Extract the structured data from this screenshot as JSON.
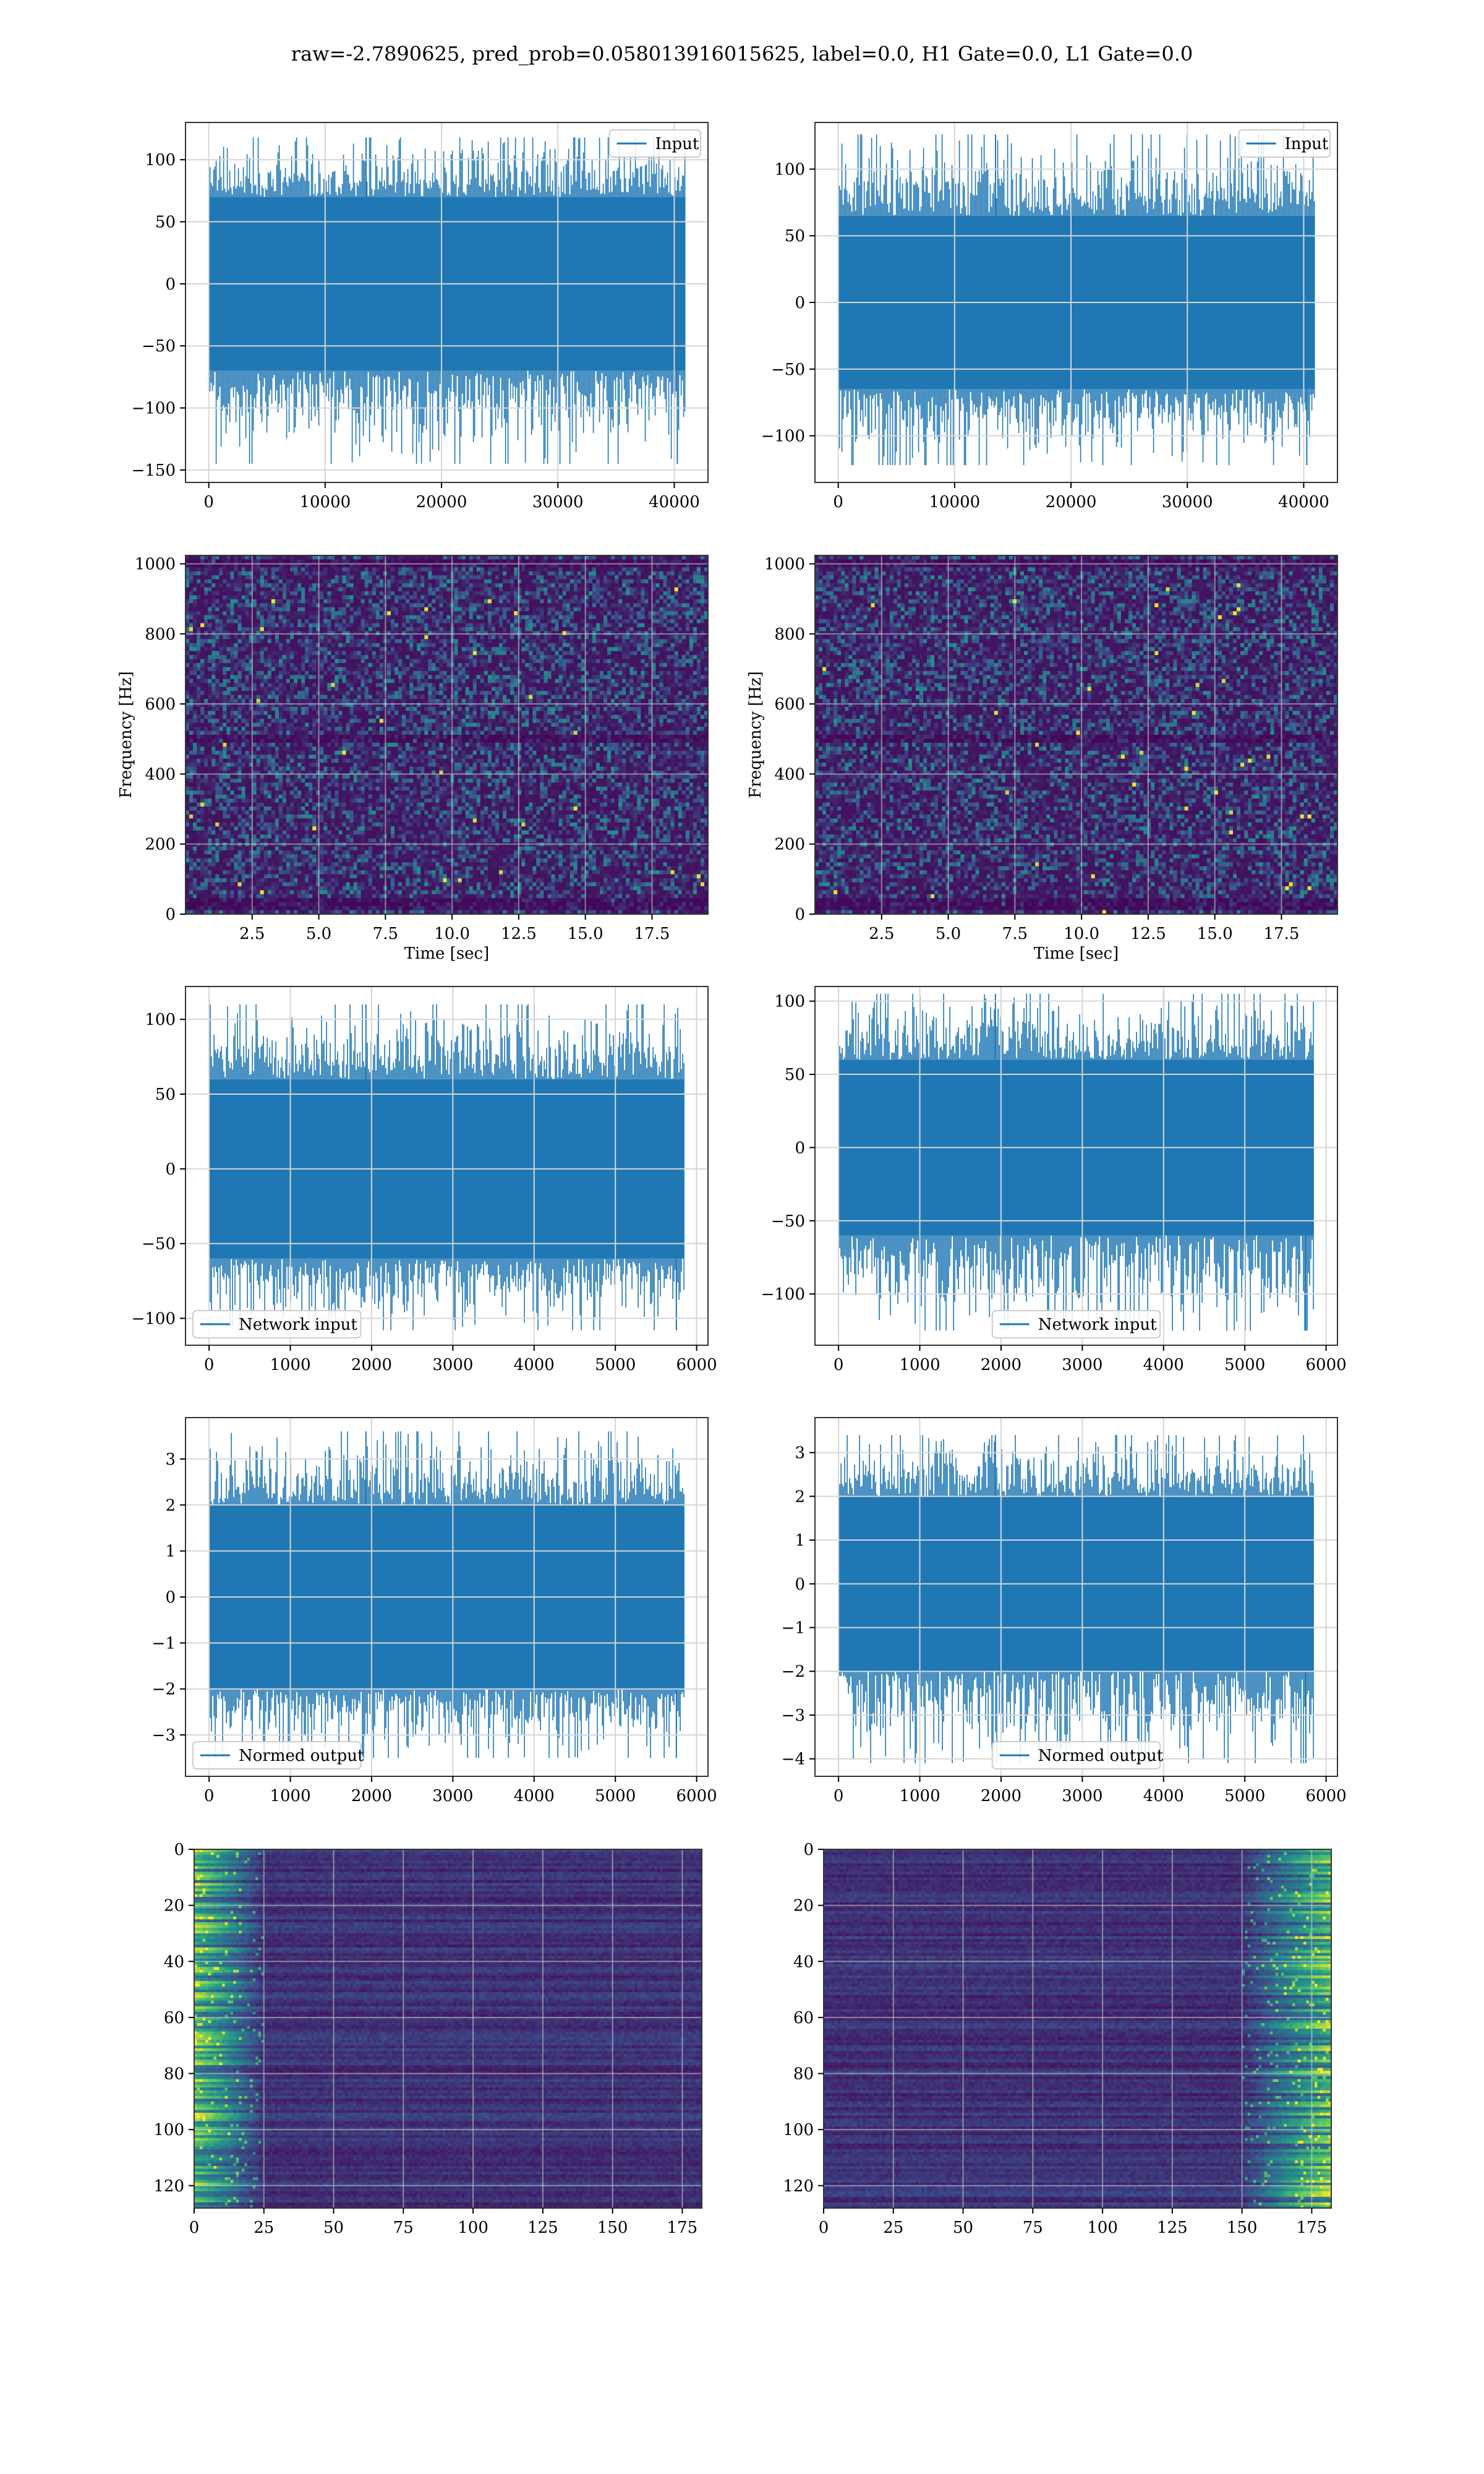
{
  "figure": {
    "title": "raw=-2.7890625, pred_prob=0.058013916015625, label=0.0, H1 Gate=0.0, L1 Gate=0.0"
  },
  "colors": {
    "line": "#1f77b4",
    "grid": "#d6d6d6",
    "viridis": [
      "#440154",
      "#3b528b",
      "#21918c",
      "#5ec962",
      "#fde725"
    ]
  },
  "chart_data": [
    {
      "id": "input-h1",
      "type": "line",
      "title": "",
      "xlabel": "",
      "ylabel": "",
      "xlim": [
        -2000,
        42900
      ],
      "ylim": [
        -160,
        130
      ],
      "xticks": [
        0,
        10000,
        20000,
        30000,
        40000
      ],
      "xtick_labels": [
        "0",
        "10000",
        "20000",
        "30000",
        "40000"
      ],
      "yticks": [
        -150,
        -100,
        -50,
        0,
        50,
        100
      ],
      "ytick_labels": [
        "−150",
        "−100",
        "−50",
        "0",
        "50",
        "100"
      ],
      "series": [
        {
          "name": "Input",
          "x_range": [
            0,
            40960
          ],
          "envelope": [
            -70,
            70
          ],
          "extremes": [
            -145,
            118
          ]
        }
      ],
      "legend": "upper right",
      "grid": true
    },
    {
      "id": "input-l1",
      "type": "line",
      "title": "",
      "xlabel": "",
      "ylabel": "",
      "xlim": [
        -2000,
        42900
      ],
      "ylim": [
        -135,
        135
      ],
      "xticks": [
        0,
        10000,
        20000,
        30000,
        40000
      ],
      "xtick_labels": [
        "0",
        "10000",
        "20000",
        "30000",
        "40000"
      ],
      "yticks": [
        -100,
        -50,
        0,
        50,
        100
      ],
      "ytick_labels": [
        "−100",
        "−50",
        "0",
        "50",
        "100"
      ],
      "series": [
        {
          "name": "Input",
          "x_range": [
            0,
            40960
          ],
          "envelope": [
            -65,
            65
          ],
          "extremes": [
            -122,
            126
          ]
        }
      ],
      "legend": "upper right",
      "grid": true
    },
    {
      "id": "spectrogram-h1",
      "type": "heatmap",
      "title": "",
      "xlabel": "Time [sec]",
      "ylabel": "Frequency [Hz]",
      "xlim": [
        0,
        19.6
      ],
      "ylim": [
        0,
        1024
      ],
      "xticks": [
        2.5,
        5.0,
        7.5,
        10.0,
        12.5,
        15.0,
        17.5
      ],
      "xtick_labels": [
        "2.5",
        "5.0",
        "7.5",
        "10.0",
        "12.5",
        "15.0",
        "17.5"
      ],
      "yticks": [
        0,
        200,
        400,
        600,
        800,
        1000
      ],
      "ytick_labels": [
        "0",
        "200",
        "400",
        "600",
        "800",
        "1000"
      ],
      "colormap": "viridis",
      "grid": true,
      "dark_bands_hz": [
        500,
        30,
        1000
      ]
    },
    {
      "id": "spectrogram-l1",
      "type": "heatmap",
      "title": "",
      "xlabel": "Time [sec]",
      "ylabel": "Frequency [Hz]",
      "xlim": [
        0,
        19.6
      ],
      "ylim": [
        0,
        1024
      ],
      "xticks": [
        2.5,
        5.0,
        7.5,
        10.0,
        12.5,
        15.0,
        17.5
      ],
      "xtick_labels": [
        "2.5",
        "5.0",
        "7.5",
        "10.0",
        "12.5",
        "15.0",
        "17.5"
      ],
      "yticks": [
        0,
        200,
        400,
        600,
        800,
        1000
      ],
      "ytick_labels": [
        "0",
        "200",
        "400",
        "600",
        "800",
        "1000"
      ],
      "colormap": "viridis",
      "grid": true,
      "dark_bands_hz": [
        500,
        30,
        1000
      ]
    },
    {
      "id": "network-input-h1",
      "type": "line",
      "title": "",
      "xlabel": "",
      "ylabel": "",
      "xlim": [
        -290,
        6140
      ],
      "ylim": [
        -118,
        122
      ],
      "xticks": [
        0,
        1000,
        2000,
        3000,
        4000,
        5000,
        6000
      ],
      "xtick_labels": [
        "0",
        "1000",
        "2000",
        "3000",
        "4000",
        "5000",
        "6000"
      ],
      "yticks": [
        -100,
        -50,
        0,
        50,
        100
      ],
      "ytick_labels": [
        "−100",
        "−50",
        "0",
        "50",
        "100"
      ],
      "series": [
        {
          "name": "Network input",
          "x_range": [
            0,
            5850
          ],
          "envelope": [
            -60,
            60
          ],
          "extremes": [
            -108,
            110
          ]
        }
      ],
      "legend": "lower left",
      "grid": true
    },
    {
      "id": "network-input-l1",
      "type": "line",
      "title": "",
      "xlabel": "",
      "ylabel": "",
      "xlim": [
        -290,
        6140
      ],
      "ylim": [
        -135,
        110
      ],
      "xticks": [
        0,
        1000,
        2000,
        3000,
        4000,
        5000,
        6000
      ],
      "xtick_labels": [
        "0",
        "1000",
        "2000",
        "3000",
        "4000",
        "5000",
        "6000"
      ],
      "yticks": [
        -100,
        -50,
        0,
        50,
        100
      ],
      "ytick_labels": [
        "−100",
        "−50",
        "0",
        "50",
        "100"
      ],
      "series": [
        {
          "name": "Network input",
          "x_range": [
            0,
            5850
          ],
          "envelope": [
            -60,
            60
          ],
          "extremes": [
            -125,
            105
          ]
        }
      ],
      "legend": "lower center",
      "grid": true
    },
    {
      "id": "normed-output-h1",
      "type": "line",
      "title": "",
      "xlabel": "",
      "ylabel": "",
      "xlim": [
        -290,
        6140
      ],
      "ylim": [
        -3.9,
        3.9
      ],
      "xticks": [
        0,
        1000,
        2000,
        3000,
        4000,
        5000,
        6000
      ],
      "xtick_labels": [
        "0",
        "1000",
        "2000",
        "3000",
        "4000",
        "5000",
        "6000"
      ],
      "yticks": [
        -3,
        -2,
        -1,
        0,
        1,
        2,
        3
      ],
      "ytick_labels": [
        "−3",
        "−2",
        "−1",
        "0",
        "1",
        "2",
        "3"
      ],
      "series": [
        {
          "name": "Normed output",
          "x_range": [
            0,
            5850
          ],
          "envelope": [
            -2.0,
            2.0
          ],
          "extremes": [
            -3.5,
            3.6
          ]
        }
      ],
      "legend": "lower left",
      "grid": true
    },
    {
      "id": "normed-output-l1",
      "type": "line",
      "title": "",
      "xlabel": "",
      "ylabel": "",
      "xlim": [
        -290,
        6140
      ],
      "ylim": [
        -4.4,
        3.8
      ],
      "xticks": [
        0,
        1000,
        2000,
        3000,
        4000,
        5000,
        6000
      ],
      "xtick_labels": [
        "0",
        "1000",
        "2000",
        "3000",
        "4000",
        "5000",
        "6000"
      ],
      "yticks": [
        -4,
        -3,
        -2,
        -1,
        0,
        1,
        2,
        3
      ],
      "ytick_labels": [
        "−4",
        "−3",
        "−2",
        "−1",
        "0",
        "1",
        "2",
        "3"
      ],
      "series": [
        {
          "name": "Normed output",
          "x_range": [
            0,
            5850
          ],
          "envelope": [
            -2.0,
            2.0
          ],
          "extremes": [
            -4.1,
            3.4
          ]
        }
      ],
      "legend": "lower center",
      "grid": true
    },
    {
      "id": "feature-map-h1",
      "type": "heatmap",
      "title": "",
      "xlabel": "",
      "ylabel": "",
      "xlim": [
        0,
        182
      ],
      "ylim": [
        128,
        0
      ],
      "xticks": [
        0,
        25,
        50,
        75,
        100,
        125,
        150,
        175
      ],
      "xtick_labels": [
        "0",
        "25",
        "50",
        "75",
        "100",
        "125",
        "150",
        "175"
      ],
      "yticks": [
        0,
        20,
        40,
        60,
        80,
        100,
        120
      ],
      "ytick_labels": [
        "0",
        "20",
        "40",
        "60",
        "80",
        "100",
        "120"
      ],
      "colormap": "viridis",
      "grid": true,
      "bright_columns": [
        0,
        25
      ]
    },
    {
      "id": "feature-map-l1",
      "type": "heatmap",
      "title": "",
      "xlabel": "",
      "ylabel": "",
      "xlim": [
        0,
        182
      ],
      "ylim": [
        128,
        0
      ],
      "xticks": [
        0,
        25,
        50,
        75,
        100,
        125,
        150,
        175
      ],
      "xtick_labels": [
        "0",
        "25",
        "50",
        "75",
        "100",
        "125",
        "150",
        "175"
      ],
      "yticks": [
        0,
        20,
        40,
        60,
        80,
        100,
        120
      ],
      "ytick_labels": [
        "0",
        "20",
        "40",
        "60",
        "80",
        "100",
        "120"
      ],
      "colormap": "viridis",
      "grid": true,
      "bright_columns": [
        150,
        182
      ]
    }
  ]
}
